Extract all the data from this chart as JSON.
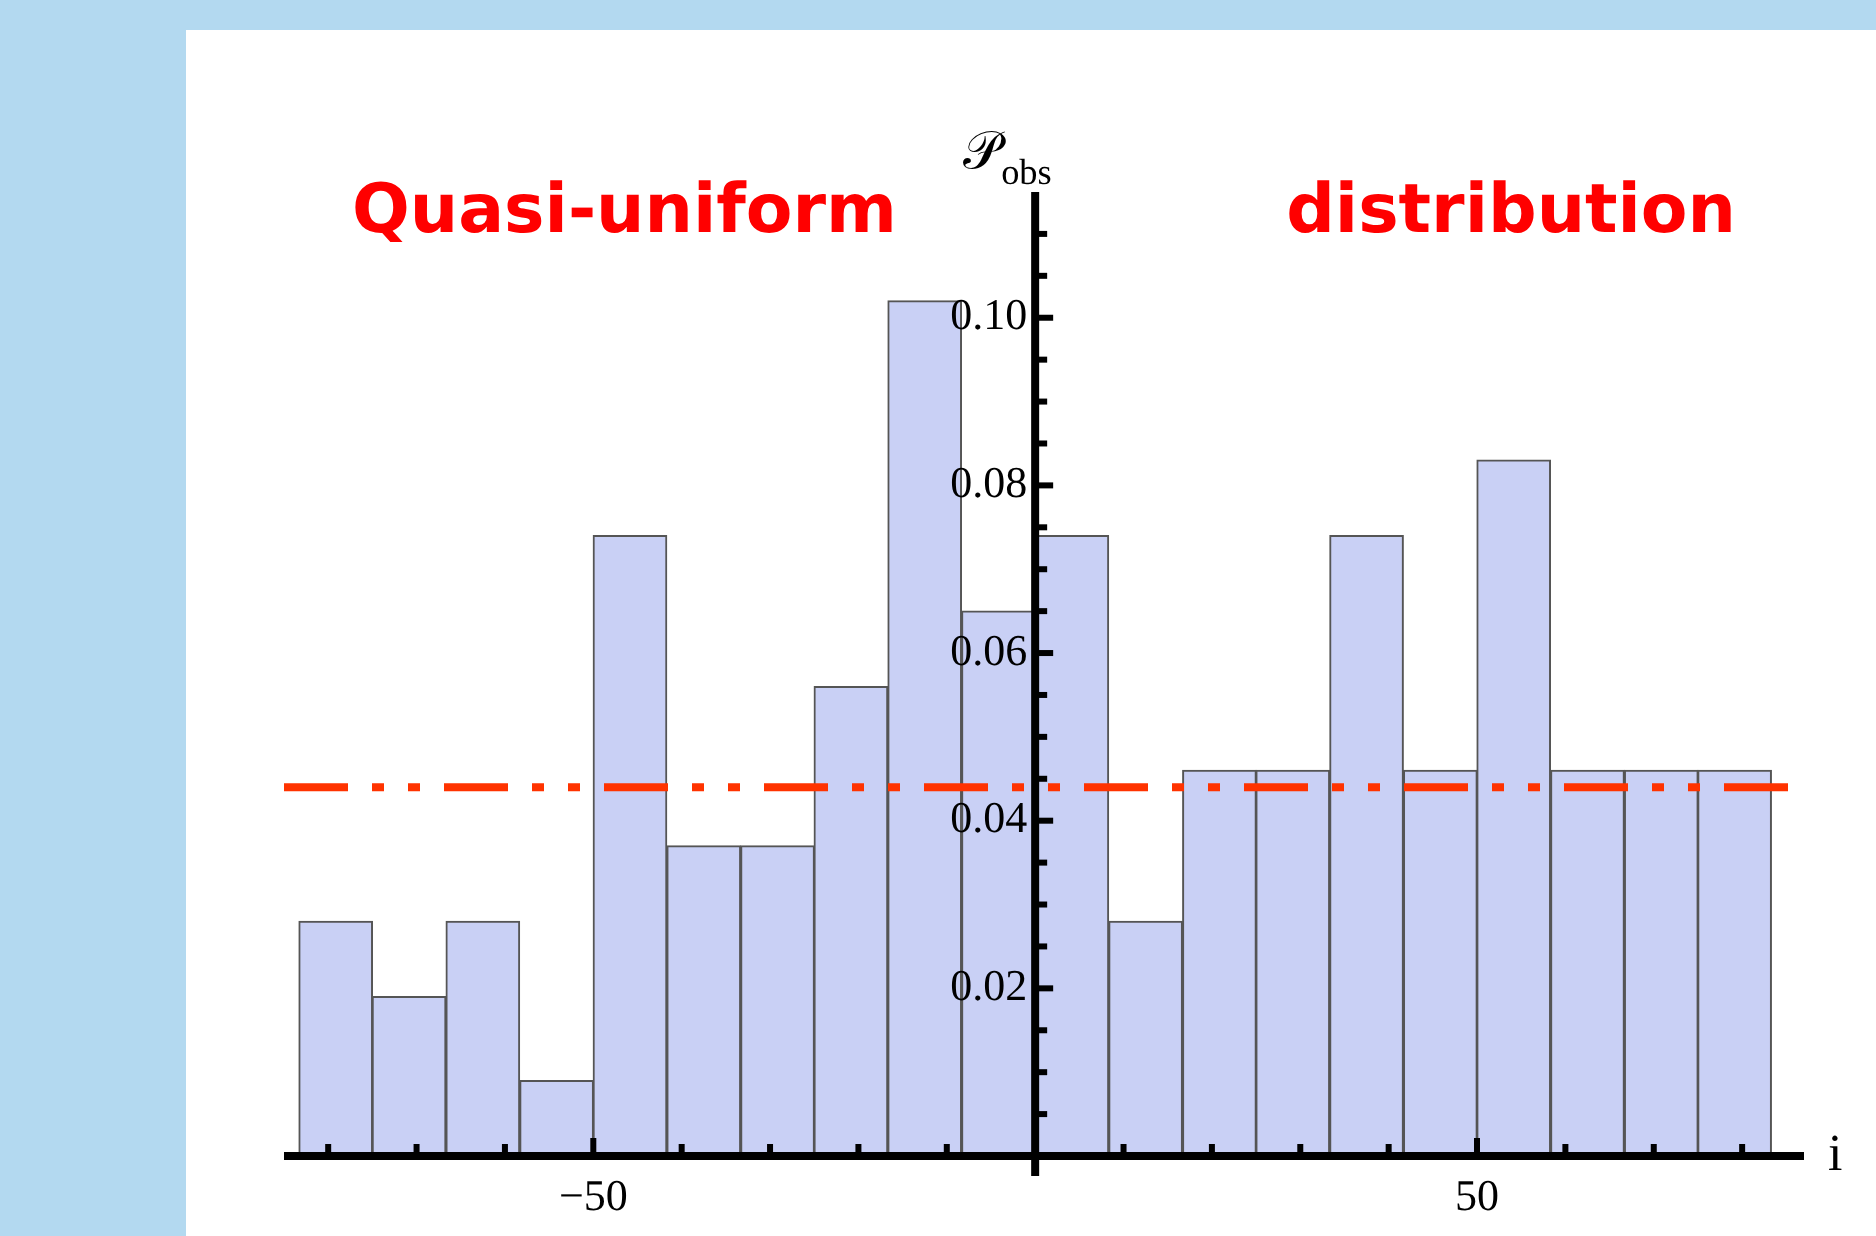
{
  "chart_data": {
    "type": "histogram",
    "ylabel": "𝒫$_{obs}$",
    "xlabel": "i",
    "annotations": [
      "Quasi-uniform",
      "distribution"
    ],
    "bins": [
      -83.3,
      -75,
      -66.7,
      -58.3,
      -50,
      -41.7,
      -33.3,
      -25,
      -16.7,
      -8.3,
      0,
      8.3,
      16.7,
      25,
      33.3,
      41.7,
      50,
      58.3,
      66.7,
      75,
      83.3
    ],
    "values": [
      0.028,
      0.019,
      0.028,
      0.009,
      0.074,
      0.037,
      0.037,
      0.056,
      0.102,
      0.065,
      0.074,
      0.028,
      0.046,
      0.046,
      0.074,
      0.046,
      0.083,
      0.046,
      0.046,
      0.046
    ],
    "color": "#c9d0f5",
    "xlim": [
      -85,
      87
    ],
    "ylim": [
      0,
      0.115
    ],
    "xticks": [
      {
        "value": -80,
        "label": null
      },
      {
        "value": -70,
        "label": null
      },
      {
        "value": -60,
        "label": null
      },
      -50,
      {
        "value": -40,
        "label": null
      },
      {
        "value": -30,
        "label": null
      },
      {
        "value": -20,
        "label": null
      },
      {
        "value": -10,
        "label": null
      },
      {
        "value": 10,
        "label": null
      },
      {
        "value": 20,
        "label": null
      },
      {
        "value": 30,
        "label": null
      },
      {
        "value": 40,
        "label": null
      },
      50,
      {
        "value": 60,
        "label": null
      },
      {
        "value": 70,
        "label": null
      },
      {
        "value": 80,
        "label": null
      }
    ],
    "yticks": [
      {
        "value": 0.005,
        "label": null
      },
      {
        "value": 0.01,
        "label": null
      },
      {
        "value": 0.015,
        "label": null
      },
      0.02,
      {
        "value": 0.025,
        "label": null
      },
      {
        "value": 0.03,
        "label": null
      },
      {
        "value": 0.035,
        "label": null
      },
      0.04,
      {
        "value": 0.045,
        "label": null
      },
      {
        "value": 0.05,
        "label": null
      },
      {
        "value": 0.055,
        "label": null
      },
      0.06,
      {
        "value": 0.065,
        "label": null
      },
      {
        "value": 0.07,
        "label": null
      },
      {
        "value": 0.075,
        "label": null
      },
      0.08,
      {
        "value": 0.085,
        "label": null
      },
      {
        "value": 0.09,
        "label": null
      },
      {
        "value": 0.095,
        "label": null
      },
      {
        "value": 0.1,
        "label": "0.10"
      },
      {
        "value": 0.105,
        "label": null
      },
      {
        "value": 0.11,
        "label": null
      }
    ],
    "ref_lines": [
      {
        "axis": "y",
        "value": 0.044,
        "color": "#ff3300",
        "line_style": "dashed"
      }
    ],
    "legend": false
  }
}
